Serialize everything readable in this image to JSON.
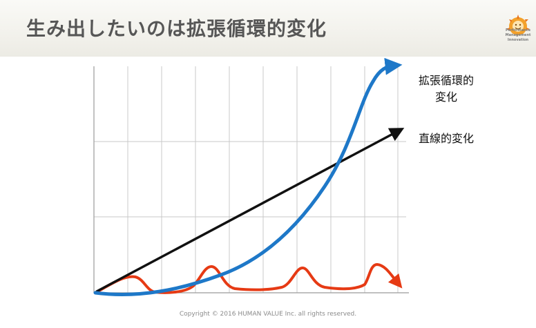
{
  "slide": {
    "title": "生み出したいのは拡張循環的変化",
    "copyright": "Copyright © 2016 HUMAN VALUE Inc. all rights reserved."
  },
  "logo": {
    "lines": [
      "Performance",
      "Management",
      "Innovation"
    ],
    "icon": "sun-face-logo-icon"
  },
  "diagram": {
    "label_circular_line1": "拡張循環的",
    "label_circular_line2": "変化",
    "label_linear": "直線的変化",
    "colors": {
      "circular": "#1e78c8",
      "linear": "#111111",
      "cyclical": "#e63a14",
      "grid": "#c8c8c8",
      "axis": "#9a9a9a"
    }
  }
}
